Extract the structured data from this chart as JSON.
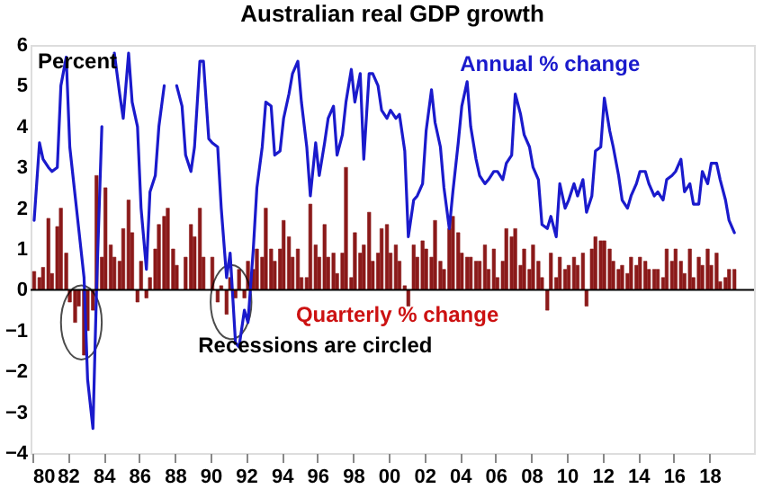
{
  "chart_data": {
    "type": "bar",
    "title": "Australian real GDP growth",
    "ylabel": "Percent",
    "x": [
      1980.1,
      1980.4,
      1980.6,
      1980.9,
      1981.1,
      1981.4,
      1981.6,
      1981.9,
      1982.1,
      1982.4,
      1982.6,
      1982.9,
      1983.1,
      1983.4,
      1983.6,
      1983.9,
      1984.1,
      1984.4,
      1984.6,
      1984.9,
      1985.1,
      1985.4,
      1985.6,
      1985.9,
      1986.1,
      1986.4,
      1986.6,
      1986.9,
      1987.1,
      1987.4,
      1987.6,
      1987.9,
      1988.1,
      1988.4,
      1988.6,
      1988.9,
      1989.1,
      1989.4,
      1989.6,
      1989.9,
      1990.1,
      1990.4,
      1990.6,
      1990.9,
      1991.1,
      1991.4,
      1991.6,
      1991.9,
      1992.1,
      1992.4,
      1992.6,
      1992.9,
      1993.1,
      1993.4,
      1993.6,
      1993.9,
      1994.1,
      1994.4,
      1994.6,
      1994.9,
      1995.1,
      1995.4,
      1995.6,
      1995.9,
      1996.1,
      1996.4,
      1996.6,
      1996.9,
      1997.1,
      1997.4,
      1997.6,
      1997.9,
      1998.1,
      1998.4,
      1998.6,
      1998.9,
      1999.1,
      1999.4,
      1999.6,
      1999.9,
      2000.1,
      2000.4,
      2000.6,
      2000.9,
      2001.1,
      2001.4,
      2001.6,
      2001.9,
      2002.1,
      2002.4,
      2002.6,
      2002.9,
      2003.1,
      2003.4,
      2003.6,
      2003.9,
      2004.1,
      2004.4,
      2004.6,
      2004.9,
      2005.1,
      2005.4,
      2005.6,
      2005.9,
      2006.1,
      2006.4,
      2006.6,
      2006.9,
      2007.1,
      2007.4,
      2007.6,
      2007.9,
      2008.1,
      2008.4,
      2008.6,
      2008.9,
      2009.1,
      2009.4,
      2009.6,
      2009.9,
      2010.1,
      2010.4,
      2010.6,
      2010.9,
      2011.1,
      2011.4,
      2011.6,
      2011.9,
      2012.1,
      2012.4,
      2012.6,
      2012.9,
      2013.1,
      2013.4,
      2013.6,
      2013.9,
      2014.1,
      2014.4,
      2014.6,
      2014.9,
      2015.1,
      2015.4,
      2015.6,
      2015.9,
      2016.1,
      2016.4,
      2016.6,
      2016.9,
      2017.1,
      2017.4,
      2017.6,
      2017.9,
      2018.1,
      2018.4,
      2018.6,
      2018.9,
      2019.1,
      2019.4
    ],
    "series": [
      {
        "name": "Quarterly % change",
        "color": "#8b1a1a",
        "values": [
          0.45,
          0.3,
          0.55,
          1.75,
          0.4,
          1.55,
          2.0,
          0.9,
          -0.3,
          -0.8,
          -0.4,
          -1.6,
          -1.0,
          -0.5,
          2.8,
          0.8,
          2.5,
          1.1,
          0.8,
          0.7,
          1.5,
          2.2,
          1.4,
          -0.3,
          0.7,
          -0.2,
          0.3,
          1.0,
          1.6,
          1.8,
          2.0,
          1.0,
          0.6,
          0.0,
          0.8,
          1.6,
          1.3,
          2.0,
          0.8,
          0.0,
          0.8,
          -0.3,
          0.1,
          -0.6,
          0.3,
          -0.2,
          0.5,
          -0.2,
          0.7,
          0.5,
          1.0,
          0.8,
          2.0,
          1.0,
          0.7,
          1.0,
          1.7,
          1.3,
          0.8,
          1.0,
          0.3,
          0.3,
          2.1,
          1.1,
          0.8,
          1.6,
          0.8,
          0.9,
          0.4,
          0.9,
          3.0,
          0.3,
          1.4,
          0.9,
          1.1,
          1.9,
          0.7,
          0.9,
          1.5,
          1.6,
          0.9,
          1.1,
          0.7,
          0.1,
          -0.4,
          1.1,
          0.8,
          1.2,
          1.0,
          0.8,
          1.7,
          0.7,
          0.5,
          1.5,
          1.8,
          1.4,
          0.9,
          0.8,
          0.8,
          0.7,
          0.7,
          1.1,
          0.5,
          1.0,
          0.3,
          0.7,
          1.5,
          1.3,
          1.5,
          0.6,
          1.0,
          0.5,
          1.1,
          0.7,
          0.3,
          -0.5,
          0.9,
          0.3,
          0.8,
          0.5,
          0.6,
          0.8,
          0.6,
          0.9,
          -0.4,
          1.0,
          1.3,
          1.2,
          1.2,
          1.0,
          0.7,
          0.5,
          0.6,
          0.4,
          0.8,
          0.6,
          0.8,
          0.7,
          0.5,
          0.5,
          0.5,
          0.3,
          1.0,
          0.7,
          1.0,
          0.7,
          0.4,
          1.0,
          0.3,
          0.8,
          0.6,
          1.0,
          0.6,
          0.9,
          0.2,
          0.3,
          0.5,
          0.5
        ]
      },
      {
        "name": "Annual % change",
        "type": "line",
        "color": "#1a1acc",
        "values": [
          1.7,
          3.6,
          3.2,
          3.0,
          2.9,
          3.0,
          5.0,
          5.7,
          3.5,
          2.3,
          1.5,
          0.3,
          -2.2,
          -3.4,
          0.0,
          4.0,
          null,
          null,
          5.8,
          4.8,
          4.2,
          5.8,
          4.6,
          4.0,
          2.0,
          0.5,
          2.4,
          2.8,
          4.0,
          5.0,
          null,
          null,
          5.0,
          4.5,
          3.3,
          2.9,
          3.5,
          5.6,
          5.6,
          3.7,
          3.6,
          3.5,
          2.0,
          0.3,
          0.9,
          -1.3,
          -1.4,
          -0.5,
          -0.8,
          1.0,
          2.5,
          3.5,
          4.6,
          4.5,
          3.3,
          3.4,
          4.2,
          4.8,
          5.3,
          5.6,
          4.6,
          3.5,
          2.3,
          3.6,
          2.8,
          3.6,
          4.2,
          4.5,
          3.3,
          3.8,
          4.6,
          5.4,
          4.6,
          5.3,
          3.2,
          5.3,
          5.3,
          5.0,
          4.4,
          4.2,
          4.4,
          4.2,
          4.3,
          3.4,
          1.3,
          2.2,
          2.3,
          2.6,
          3.9,
          4.9,
          4.1,
          3.5,
          2.5,
          1.5,
          2.4,
          3.6,
          4.5,
          5.1,
          4.0,
          3.2,
          2.8,
          2.6,
          2.7,
          2.9,
          2.9,
          2.7,
          3.1,
          3.3,
          4.8,
          4.3,
          3.8,
          3.5,
          3.0,
          2.7,
          1.6,
          1.5,
          1.8,
          1.3,
          2.6,
          2.0,
          2.2,
          2.6,
          2.3,
          2.7,
          1.9,
          2.3,
          3.4,
          3.5,
          4.7,
          3.9,
          3.5,
          2.8,
          2.2,
          2.0,
          2.3,
          2.6,
          2.9,
          2.9,
          2.6,
          2.3,
          2.4,
          2.2,
          2.7,
          2.8,
          2.9,
          3.2,
          2.4,
          2.6,
          2.1,
          2.1,
          2.9,
          2.6,
          3.1,
          3.1,
          2.7,
          2.2,
          1.7,
          1.4
        ]
      }
    ],
    "xlim": [
      1979.9,
      2020.5
    ],
    "xticks": [
      {
        "value": 1980,
        "label": "80"
      },
      {
        "value": 1982,
        "label": "82"
      },
      {
        "value": 1984,
        "label": "84"
      },
      {
        "value": 1986,
        "label": "86"
      },
      {
        "value": 1988,
        "label": "88"
      },
      {
        "value": 1990,
        "label": "90"
      },
      {
        "value": 1992,
        "label": "92"
      },
      {
        "value": 1994,
        "label": "94"
      },
      {
        "value": 1996,
        "label": "96"
      },
      {
        "value": 1998,
        "label": "98"
      },
      {
        "value": 2000,
        "label": "00"
      },
      {
        "value": 2002,
        "label": "02"
      },
      {
        "value": 2004,
        "label": "04"
      },
      {
        "value": 2006,
        "label": "06"
      },
      {
        "value": 2008,
        "label": "08"
      },
      {
        "value": 2010,
        "label": "10"
      },
      {
        "value": 2012,
        "label": "12"
      },
      {
        "value": 2014,
        "label": "14"
      },
      {
        "value": 2016,
        "label": "16"
      },
      {
        "value": 2018,
        "label": "18"
      }
    ],
    "ylim": [
      -4,
      6
    ],
    "yticks": [
      -4,
      -3,
      -2,
      -1,
      0,
      1,
      2,
      3,
      4,
      5,
      6
    ],
    "ref_lines": [
      {
        "axis": "y",
        "value": 0,
        "color": "#000000"
      }
    ],
    "annotations": [
      "Recessions are circled"
    ],
    "grid": false
  }
}
